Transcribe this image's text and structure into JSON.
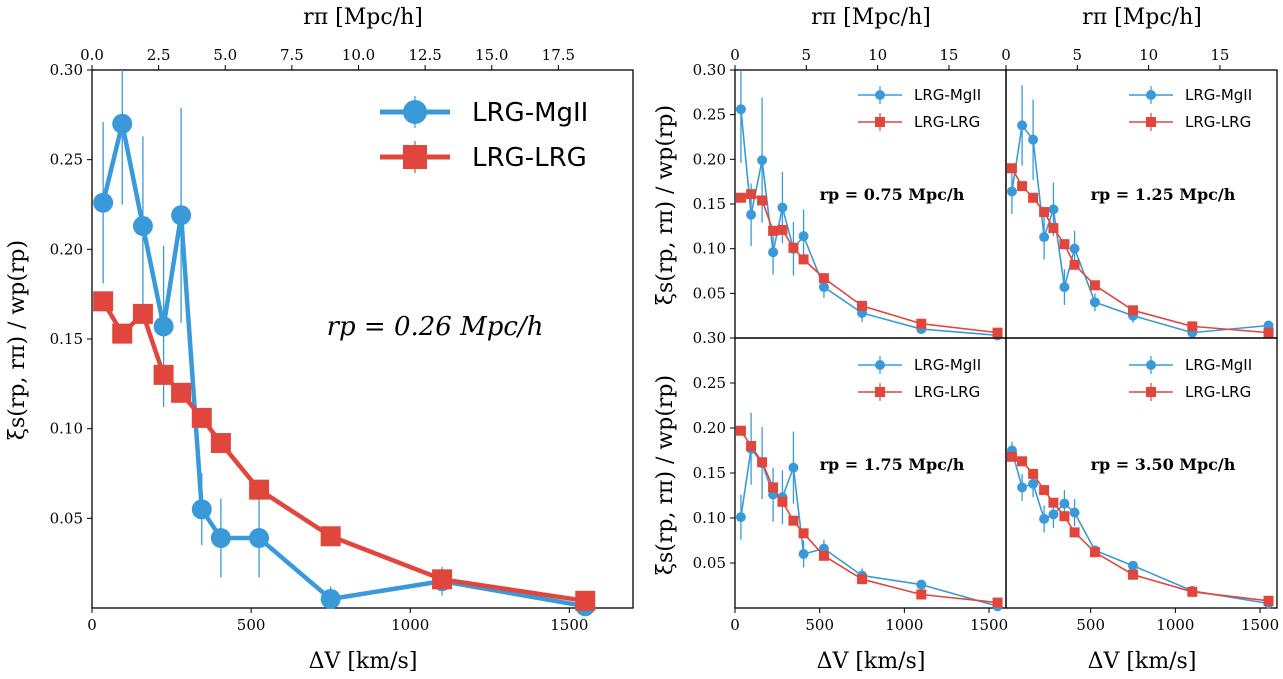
{
  "colors": {
    "mgii": "#3a9ad9",
    "lrg": "#e0463c"
  },
  "labels": {
    "xlabel": "ΔV [km/s]",
    "ylabel": "ξs(rp, rπ) / wp(rp)",
    "top_xlabel": "rπ [Mpc/h]",
    "legend_mgii": "LRG-MgII",
    "legend_lrg": "LRG-LRG"
  },
  "chart_data": [
    {
      "type": "line",
      "panel": "main",
      "annotation": "rp = 0.26 Mpc/h",
      "xlim": [
        0,
        1700
      ],
      "ylim": [
        0,
        0.3
      ],
      "xticks": [
        0,
        500,
        1000,
        1500
      ],
      "yticks": [
        0.05,
        0.1,
        0.15,
        0.2,
        0.25,
        0.3
      ],
      "top_xticks": [
        "0.0",
        "2.5",
        "5.0",
        "7.5",
        "10.0",
        "12.5",
        "15.0",
        "17.5"
      ],
      "legend_placement": "top-right",
      "series": [
        {
          "name": "LRG-MgII",
          "x": [
            35,
            95,
            160,
            225,
            280,
            345,
            405,
            525,
            750,
            1100,
            1550
          ],
          "y": [
            0.226,
            0.27,
            0.213,
            0.157,
            0.219,
            0.055,
            0.039,
            0.039,
            0.005,
            0.015,
            0.001
          ],
          "err": [
            0.045,
            0.045,
            0.05,
            0.045,
            0.06,
            0.02,
            0.022,
            0.022,
            0.007,
            0.008,
            0.004
          ]
        },
        {
          "name": "LRG-LRG",
          "x": [
            35,
            95,
            160,
            225,
            280,
            345,
            405,
            525,
            750,
            1100,
            1550
          ],
          "y": [
            0.171,
            0.153,
            0.164,
            0.13,
            0.12,
            0.106,
            0.092,
            0.066,
            0.04,
            0.016,
            0.004
          ],
          "err": [
            0.004,
            0.004,
            0.004,
            0.004,
            0.004,
            0.004,
            0.004,
            0.003,
            0.003,
            0.003,
            0.002
          ]
        }
      ]
    },
    {
      "type": "line",
      "panel": "top-left",
      "annotation": "rp = 0.75 Mpc/h",
      "xlim": [
        0,
        1600
      ],
      "ylim": [
        0,
        0.3
      ],
      "xticks": [],
      "yticks": [
        0.05,
        0.1,
        0.15,
        0.2,
        0.25,
        0.3
      ],
      "top_xticks": [
        "0",
        "5",
        "10",
        "15"
      ],
      "legend_placement": "top-right",
      "series": [
        {
          "name": "LRG-MgII",
          "x": [
            35,
            95,
            160,
            225,
            280,
            345,
            405,
            525,
            750,
            1100,
            1550
          ],
          "y": [
            0.256,
            0.138,
            0.199,
            0.096,
            0.146,
            0.1,
            0.114,
            0.057,
            0.028,
            0.01,
            0.003
          ],
          "err": [
            0.06,
            0.035,
            0.07,
            0.025,
            0.04,
            0.03,
            0.03,
            0.012,
            0.01,
            0.005,
            0.005
          ]
        },
        {
          "name": "LRG-LRG",
          "x": [
            35,
            95,
            160,
            225,
            280,
            345,
            405,
            525,
            750,
            1100,
            1550
          ],
          "y": [
            0.157,
            0.161,
            0.154,
            0.12,
            0.121,
            0.101,
            0.088,
            0.067,
            0.036,
            0.016,
            0.006
          ],
          "err": [
            0.004,
            0.004,
            0.004,
            0.004,
            0.004,
            0.004,
            0.004,
            0.003,
            0.003,
            0.003,
            0.002
          ]
        }
      ]
    },
    {
      "type": "line",
      "panel": "top-right",
      "annotation": "rp = 1.25 Mpc/h",
      "xlim": [
        0,
        1600
      ],
      "ylim": [
        0,
        0.3
      ],
      "xticks": [],
      "yticks": [],
      "top_xticks": [
        "0",
        "5",
        "10",
        "15"
      ],
      "legend_placement": "top-right",
      "series": [
        {
          "name": "LRG-MgII",
          "x": [
            35,
            95,
            160,
            225,
            280,
            345,
            405,
            525,
            750,
            1100,
            1550
          ],
          "y": [
            0.164,
            0.238,
            0.222,
            0.113,
            0.144,
            0.057,
            0.1,
            0.04,
            0.025,
            0.006,
            0.014
          ],
          "err": [
            0.025,
            0.045,
            0.045,
            0.025,
            0.03,
            0.02,
            0.02,
            0.01,
            0.008,
            0.005,
            0.004
          ]
        },
        {
          "name": "LRG-LRG",
          "x": [
            35,
            95,
            160,
            225,
            280,
            345,
            405,
            525,
            750,
            1100,
            1550
          ],
          "y": [
            0.19,
            0.17,
            0.157,
            0.141,
            0.123,
            0.105,
            0.082,
            0.059,
            0.031,
            0.013,
            0.006
          ],
          "err": [
            0.004,
            0.004,
            0.004,
            0.004,
            0.004,
            0.004,
            0.004,
            0.003,
            0.003,
            0.003,
            0.002
          ]
        }
      ]
    },
    {
      "type": "line",
      "panel": "bottom-left",
      "annotation": "rp = 1.75 Mpc/h",
      "xlim": [
        0,
        1600
      ],
      "ylim": [
        0,
        0.3
      ],
      "xticks": [
        0,
        500,
        1000,
        1500
      ],
      "yticks": [
        0.05,
        0.1,
        0.15,
        0.2,
        0.25,
        0.3
      ],
      "legend_placement": "top-right",
      "series": [
        {
          "name": "LRG-MgII",
          "x": [
            35,
            95,
            160,
            225,
            280,
            345,
            405,
            525,
            750,
            1100,
            1550
          ],
          "y": [
            0.101,
            0.177,
            0.161,
            0.126,
            0.123,
            0.156,
            0.06,
            0.066,
            0.036,
            0.026,
            0.002
          ],
          "err": [
            0.025,
            0.04,
            0.04,
            0.03,
            0.03,
            0.04,
            0.015,
            0.01,
            0.008,
            0.005,
            0.004
          ]
        },
        {
          "name": "LRG-LRG",
          "x": [
            35,
            95,
            160,
            225,
            280,
            345,
            405,
            525,
            750,
            1100,
            1550
          ],
          "y": [
            0.197,
            0.18,
            0.162,
            0.134,
            0.118,
            0.097,
            0.083,
            0.058,
            0.032,
            0.015,
            0.006
          ],
          "err": [
            0.004,
            0.004,
            0.004,
            0.004,
            0.004,
            0.004,
            0.004,
            0.003,
            0.003,
            0.003,
            0.002
          ]
        }
      ]
    },
    {
      "type": "line",
      "panel": "bottom-right",
      "annotation": "rp = 3.50 Mpc/h",
      "xlim": [
        0,
        1600
      ],
      "ylim": [
        0,
        0.3
      ],
      "xticks": [
        500,
        1000,
        1500
      ],
      "yticks": [],
      "legend_placement": "top-right",
      "series": [
        {
          "name": "LRG-MgII",
          "x": [
            35,
            95,
            160,
            225,
            280,
            345,
            405,
            525,
            750,
            1100,
            1550
          ],
          "y": [
            0.175,
            0.134,
            0.138,
            0.099,
            0.104,
            0.116,
            0.106,
            0.064,
            0.047,
            0.019,
            0.005
          ],
          "err": [
            0.01,
            0.015,
            0.015,
            0.015,
            0.015,
            0.015,
            0.015,
            0.005,
            0.004,
            0.003,
            0.003
          ]
        },
        {
          "name": "LRG-LRG",
          "x": [
            35,
            95,
            160,
            225,
            280,
            345,
            405,
            525,
            750,
            1100,
            1550
          ],
          "y": [
            0.168,
            0.163,
            0.149,
            0.131,
            0.117,
            0.102,
            0.084,
            0.062,
            0.037,
            0.018,
            0.008
          ],
          "err": [
            0.004,
            0.004,
            0.004,
            0.004,
            0.004,
            0.004,
            0.004,
            0.003,
            0.003,
            0.003,
            0.002
          ]
        }
      ]
    }
  ]
}
